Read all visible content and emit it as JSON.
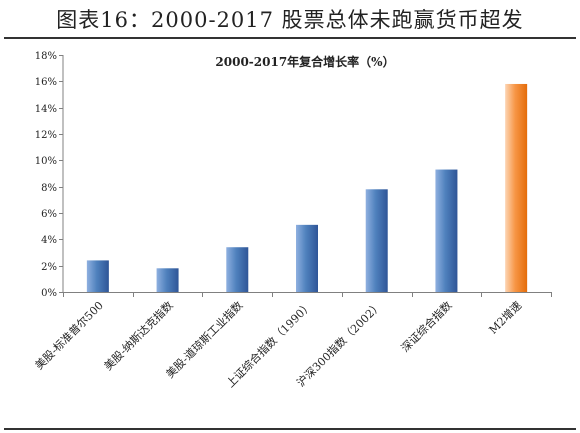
{
  "figure_title": "图表16：2000-2017 股票总体未跑赢货币超发",
  "colors": {
    "bar_blue_light": "#8fb0e0",
    "bar_blue": "#4f81bd",
    "bar_blue_dark": "#2f5597",
    "bar_orange_light": "#fcd5b4",
    "bar_orange": "#f79646",
    "bar_orange_dark": "#e46c0a",
    "axis": "#808080",
    "text": "#222222"
  },
  "chart_data": {
    "type": "bar",
    "title": "2000-2017年复合增长率（%）",
    "xlabel": "",
    "ylabel": "",
    "categories": [
      "美股-标准普尔500",
      "美股-纳斯达克指数",
      "美股-道琼斯工业指数",
      "上证综合指数（1990）",
      "沪深300指数（2002）",
      "深证综合指数",
      "M2增速"
    ],
    "values": [
      2.4,
      1.8,
      3.4,
      5.1,
      7.8,
      9.3,
      15.8
    ],
    "highlight_index": 6,
    "ylim": [
      0,
      18
    ],
    "yticks": [
      0,
      2,
      4,
      6,
      8,
      10,
      12,
      14,
      16,
      18
    ],
    "ytick_labels": [
      "0%",
      "2%",
      "4%",
      "6%",
      "8%",
      "10%",
      "12%",
      "14%",
      "16%",
      "18%"
    ],
    "grid": false,
    "legend": "none"
  }
}
